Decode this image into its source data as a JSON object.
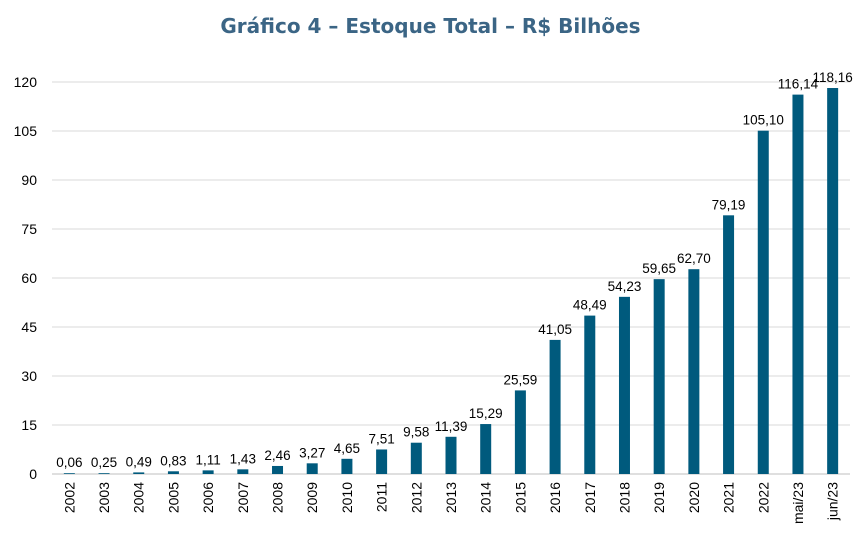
{
  "chart_data": {
    "type": "bar",
    "title": "Gráfico 4 – Estoque Total – R$ Bilhões",
    "categories": [
      "2002",
      "2003",
      "2004",
      "2005",
      "2006",
      "2007",
      "2008",
      "2009",
      "2010",
      "2011",
      "2012",
      "2013",
      "2014",
      "2015",
      "2016",
      "2017",
      "2018",
      "2019",
      "2020",
      "2021",
      "2022",
      "mai/23",
      "jun/23"
    ],
    "values": [
      0.06,
      0.25,
      0.49,
      0.83,
      1.11,
      1.43,
      2.46,
      3.27,
      4.65,
      7.51,
      9.58,
      11.39,
      15.29,
      25.59,
      41.05,
      48.49,
      54.23,
      59.65,
      62.7,
      79.19,
      105.1,
      116.14,
      118.16
    ],
    "data_labels": [
      "0,06",
      "0,25",
      "0,49",
      "0,83",
      "1,11",
      "1,43",
      "2,46",
      "3,27",
      "4,65",
      "7,51",
      "9,58",
      "11,39",
      "15,29",
      "25,59",
      "41,05",
      "48,49",
      "54,23",
      "59,65",
      "62,70",
      "79,19",
      "105,10",
      "116,14",
      "118,16"
    ],
    "ylim": [
      0,
      120
    ],
    "yticks": [
      0,
      15,
      30,
      45,
      60,
      75,
      90,
      105,
      120
    ],
    "grid": true,
    "bar_color": "#005a7d",
    "grid_color": "#d9d9d9",
    "title_color": "#3b6585"
  }
}
